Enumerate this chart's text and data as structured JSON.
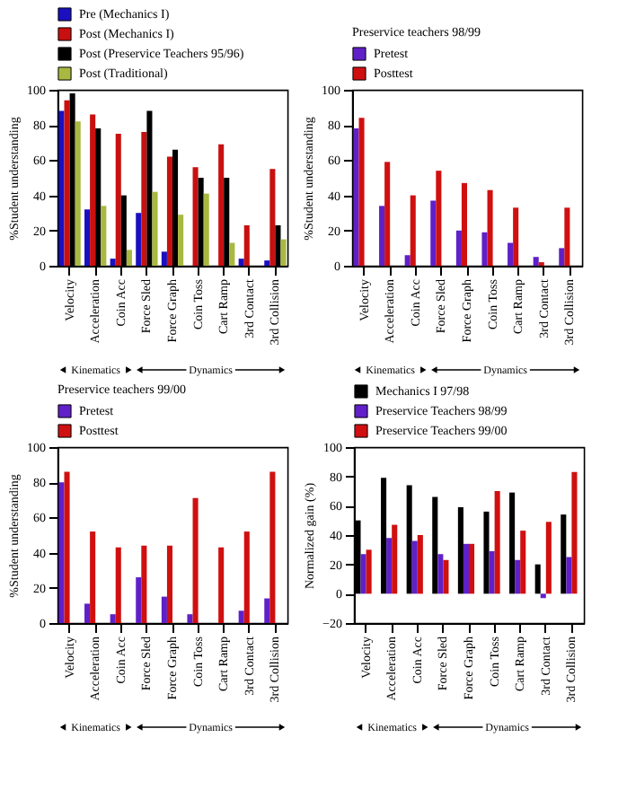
{
  "chart_data": [
    {
      "type": "bar",
      "categories": [
        "Velocity",
        "Acceleration",
        "Coin Acc",
        "Force Sled",
        "Force Graph",
        "Coin Toss",
        "Cart Ramp",
        "3rd Contact",
        "3rd Collision"
      ],
      "ylabel": "%Student understanding",
      "ylim": [
        0,
        100
      ],
      "yticks": [
        0,
        20,
        40,
        60,
        80,
        100
      ],
      "grid": false,
      "legend": "top",
      "annotations": [
        "Kinematics",
        "Dynamics"
      ],
      "series": [
        {
          "name": "Pre (Mechanics I)",
          "color": "#1a10c0",
          "values": [
            88,
            32,
            4,
            30,
            8,
            0,
            0,
            4,
            3
          ]
        },
        {
          "name": "Post (Mechanics I)",
          "color": "#c81010",
          "values": [
            94,
            86,
            75,
            76,
            62,
            56,
            69,
            23,
            55
          ]
        },
        {
          "name": "Post (Preservice Teachers 95/96)",
          "color": "#000000",
          "values": [
            98,
            78,
            40,
            88,
            66,
            50,
            50,
            0,
            23
          ]
        },
        {
          "name": "Post (Traditional)",
          "color": "#a8b840",
          "values": [
            82,
            34,
            9,
            42,
            29,
            41,
            13,
            0,
            15
          ]
        }
      ]
    },
    {
      "type": "bar",
      "categories": [
        "Velocity",
        "Acceleration",
        "Coin Acc",
        "Force Sled",
        "Force Graph",
        "Coin Toss",
        "Cart Ramp",
        "3rd Contact",
        "3rd Collision"
      ],
      "ylabel": "%Student understanding",
      "ylim": [
        0,
        100
      ],
      "yticks": [
        0,
        20,
        40,
        60,
        80,
        100
      ],
      "grid": false,
      "legend": "top",
      "legend_title": "Preservice teachers 98/99",
      "annotations": [
        "Kinematics",
        "Dynamics"
      ],
      "series": [
        {
          "name": "Pretest",
          "color": "#6020c8",
          "values": [
            78,
            34,
            6,
            37,
            20,
            19,
            13,
            5,
            10
          ]
        },
        {
          "name": "Posttest",
          "color": "#d01010",
          "values": [
            84,
            59,
            40,
            54,
            47,
            43,
            33,
            2,
            33
          ]
        }
      ]
    },
    {
      "type": "bar",
      "categories": [
        "Velocity",
        "Acceleration",
        "Coin Acc",
        "Force Sled",
        "Force Graph",
        "Coin Toss",
        "Cart Ramp",
        "3rd Contact",
        "3rd Collision"
      ],
      "ylabel": "%Student understanding",
      "ylim": [
        0,
        100
      ],
      "yticks": [
        0,
        20,
        40,
        60,
        80,
        100
      ],
      "grid": false,
      "legend": "top",
      "legend_title": "Preservice teachers 99/00",
      "annotations": [
        "Kinematics",
        "Dynamics"
      ],
      "series": [
        {
          "name": "Pretest",
          "color": "#6020c8",
          "values": [
            80,
            11,
            5,
            26,
            15,
            5,
            0,
            7,
            14
          ]
        },
        {
          "name": "Posttest",
          "color": "#d01010",
          "values": [
            86,
            52,
            43,
            44,
            44,
            71,
            43,
            52,
            86
          ]
        }
      ]
    },
    {
      "type": "bar",
      "categories": [
        "Velocity",
        "Acceleration",
        "Coin Acc",
        "Force Sled",
        "Force Graph",
        "Coin Toss",
        "Cart Ramp",
        "3rd Contact",
        "3rd Collision"
      ],
      "ylabel": "Normalized gain (%)",
      "ylim": [
        -20,
        100
      ],
      "yticks": [
        -20,
        0,
        20,
        40,
        60,
        80,
        100
      ],
      "grid": false,
      "legend": "top",
      "annotations": [
        "Kinematics",
        "Dynamics"
      ],
      "series": [
        {
          "name": "Mechanics I 97/98",
          "color": "#000000",
          "values": [
            50,
            79,
            74,
            66,
            59,
            56,
            69,
            20,
            54
          ]
        },
        {
          "name": "Preservice Teachers 98/99",
          "color": "#6020c8",
          "values": [
            27,
            38,
            36,
            27,
            34,
            29,
            23,
            -3,
            25
          ]
        },
        {
          "name": "Preservice Teachers 99/00",
          "color": "#d01010",
          "values": [
            30,
            47,
            40,
            23,
            34,
            70,
            43,
            49,
            83
          ]
        }
      ]
    }
  ]
}
